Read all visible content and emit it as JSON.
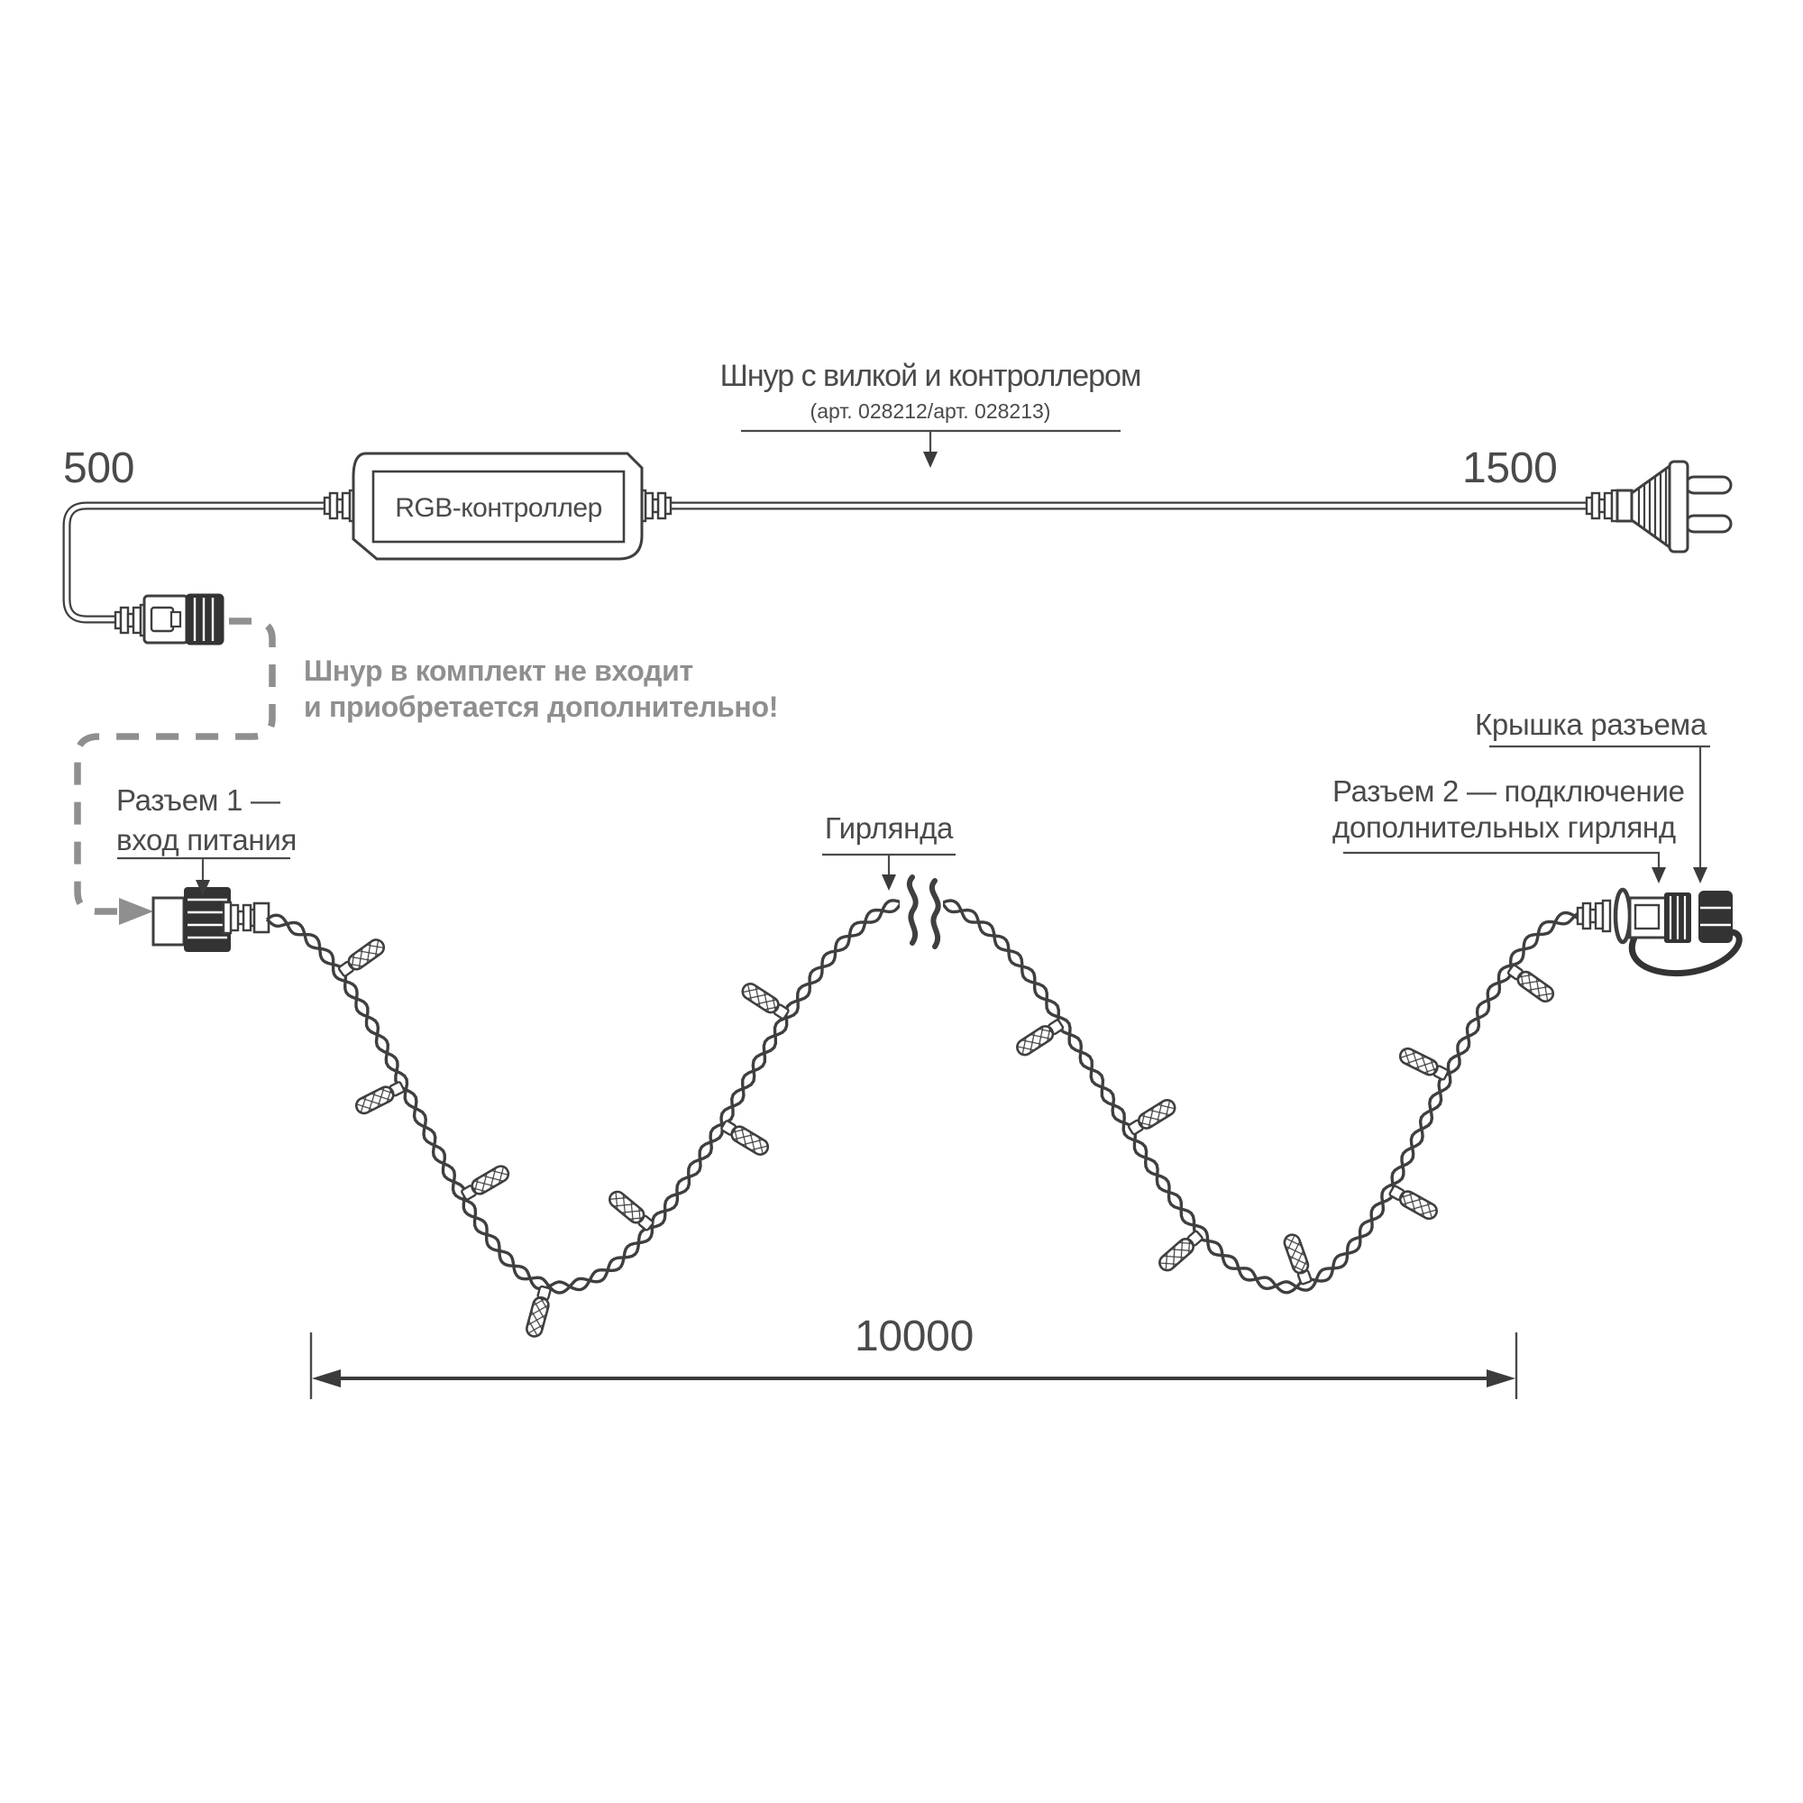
{
  "colors": {
    "line": "#3f3f3f",
    "text": "#4a4a4a",
    "muted": "#8f8f8f",
    "dark_fill": "#333333",
    "background": "#ffffff"
  },
  "cord": {
    "title": "Шнур с вилкой и контроллером",
    "subtitle": "(арт. 028212/арт. 028213)",
    "length_left": "500",
    "length_right": "1500",
    "controller_label": "RGB-контроллер"
  },
  "note": {
    "line1": "Шнур в комплект не входит",
    "line2": "и приобретается дополнительно!"
  },
  "labels": {
    "connector1_line1": "Разъем 1 —",
    "connector1_line2": "вход питания",
    "garland": "Гирлянда",
    "connector2_line1": "Разъем 2 — подключение",
    "connector2_line2": "дополнительных гирлянд",
    "cap": "Крышка разъема"
  },
  "dimension": {
    "garland_length": "10000"
  }
}
